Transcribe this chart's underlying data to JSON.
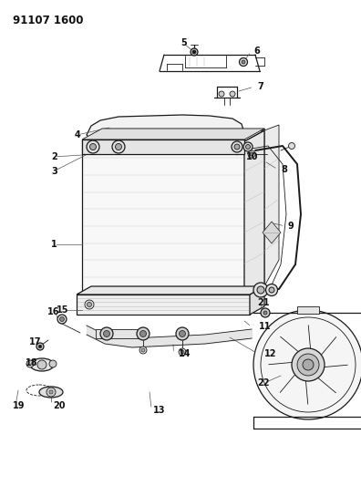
{
  "title_code": "91107 1600",
  "bg_color": "#ffffff",
  "lc": "#1a1a1a",
  "lc_med": "#444444",
  "lc_light": "#888888",
  "fig_w": 3.96,
  "fig_h": 5.33,
  "dpi": 100
}
